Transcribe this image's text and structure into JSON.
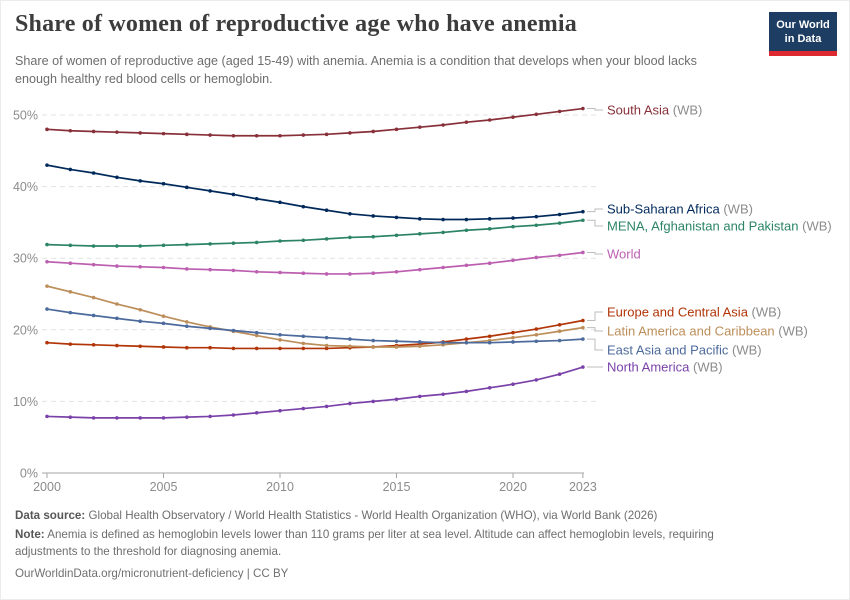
{
  "header": {
    "title": "Share of women of reproductive age who have anemia",
    "subtitle": "Share of women of reproductive age (aged 15-49) with anemia. Anemia is a condition that develops when your blood lacks enough healthy red blood cells or hemoglobin.",
    "logo": {
      "line1": "Our World",
      "line2": "in Data",
      "bg_color": "#1d3d63",
      "accent_color": "#dc2a30"
    }
  },
  "chart_data": {
    "type": "line",
    "title": "Share of women of reproductive age who have anemia",
    "xlabel": "",
    "ylabel": "",
    "x": [
      2000,
      2001,
      2002,
      2003,
      2004,
      2005,
      2006,
      2007,
      2008,
      2009,
      2010,
      2011,
      2012,
      2013,
      2014,
      2015,
      2016,
      2017,
      2018,
      2019,
      2020,
      2021,
      2022,
      2023
    ],
    "xticks": [
      2000,
      2005,
      2010,
      2015,
      2020,
      2023
    ],
    "yticks": [
      0,
      10,
      20,
      30,
      40,
      50
    ],
    "ylim": [
      0,
      52
    ],
    "grid": "horizontal-dashed",
    "legend_position": "right-of-line-ends",
    "unit": "%",
    "series": [
      {
        "name": "South Asia",
        "suffix": " (WB)",
        "color": "#883039",
        "label_y": 14,
        "values": [
          48.0,
          47.8,
          47.7,
          47.6,
          47.5,
          47.4,
          47.3,
          47.2,
          47.1,
          47.1,
          47.1,
          47.2,
          47.3,
          47.5,
          47.7,
          48.0,
          48.3,
          48.6,
          49.0,
          49.3,
          49.7,
          50.1,
          50.5,
          50.9
        ]
      },
      {
        "name": "Sub-Saharan Africa",
        "suffix": " (WB)",
        "color": "#00295B",
        "label_y": 113,
        "values": [
          43.0,
          42.4,
          41.9,
          41.3,
          40.8,
          40.4,
          39.9,
          39.4,
          38.9,
          38.3,
          37.8,
          37.2,
          36.7,
          36.2,
          35.9,
          35.7,
          35.5,
          35.4,
          35.4,
          35.5,
          35.6,
          35.8,
          36.1,
          36.5
        ]
      },
      {
        "name": "MENA, Afghanistan and Pakistan",
        "suffix": " (WB)",
        "color": "#2C8465",
        "label_y": 130,
        "values": [
          31.9,
          31.8,
          31.7,
          31.7,
          31.7,
          31.8,
          31.9,
          32.0,
          32.1,
          32.2,
          32.4,
          32.5,
          32.7,
          32.9,
          33.0,
          33.2,
          33.4,
          33.6,
          33.9,
          34.1,
          34.4,
          34.6,
          34.9,
          35.3
        ]
      },
      {
        "name": "World",
        "suffix": "",
        "color": "#BC5FB0",
        "label_y": 158,
        "values": [
          29.5,
          29.3,
          29.1,
          28.9,
          28.8,
          28.7,
          28.5,
          28.4,
          28.3,
          28.1,
          28.0,
          27.9,
          27.8,
          27.8,
          27.9,
          28.1,
          28.4,
          28.7,
          29.0,
          29.3,
          29.7,
          30.1,
          30.4,
          30.8
        ]
      },
      {
        "name": "Europe and Central Asia",
        "suffix": " (WB)",
        "color": "#B13507",
        "label_y": 216,
        "values": [
          18.2,
          18.0,
          17.9,
          17.8,
          17.7,
          17.6,
          17.5,
          17.5,
          17.4,
          17.4,
          17.4,
          17.4,
          17.4,
          17.5,
          17.6,
          17.8,
          18.0,
          18.3,
          18.7,
          19.1,
          19.6,
          20.1,
          20.7,
          21.3
        ]
      },
      {
        "name": "Latin America and Caribbean",
        "suffix": " (WB)",
        "color": "#BC8E5A",
        "label_y": 235,
        "values": [
          26.1,
          25.3,
          24.5,
          23.6,
          22.8,
          21.9,
          21.1,
          20.4,
          19.8,
          19.2,
          18.6,
          18.1,
          17.8,
          17.7,
          17.6,
          17.6,
          17.7,
          17.9,
          18.2,
          18.5,
          18.9,
          19.3,
          19.8,
          20.3
        ]
      },
      {
        "name": "East Asia and Pacific",
        "suffix": " (WB)",
        "color": "#4C6A9C",
        "label_y": 254,
        "values": [
          22.9,
          22.4,
          22.0,
          21.6,
          21.2,
          20.9,
          20.5,
          20.2,
          19.9,
          19.6,
          19.3,
          19.1,
          18.9,
          18.7,
          18.5,
          18.4,
          18.3,
          18.2,
          18.2,
          18.2,
          18.3,
          18.4,
          18.5,
          18.7
        ]
      },
      {
        "name": "North America",
        "suffix": " (WB)",
        "color": "#7A42A9",
        "label_y": 271,
        "values": [
          7.9,
          7.8,
          7.7,
          7.7,
          7.7,
          7.7,
          7.8,
          7.9,
          8.1,
          8.4,
          8.7,
          9.0,
          9.3,
          9.7,
          10.0,
          10.3,
          10.7,
          11.0,
          11.4,
          11.9,
          12.4,
          13.0,
          13.8,
          14.8
        ]
      }
    ]
  },
  "footer": {
    "source_label": "Data source:",
    "source_text": "Global Health Observatory / World Health Statistics - World Health Organization (WHO), via World Bank (2026)",
    "note_label": "Note:",
    "note_text": "Anemia is defined as hemoglobin levels lower than 110 grams per liter at sea level. Altitude can affect hemoglobin levels, requiring adjustments to the threshold for diagnosing anemia.",
    "credit": "OurWorldinData.org/micronutrient-deficiency | CC BY"
  }
}
